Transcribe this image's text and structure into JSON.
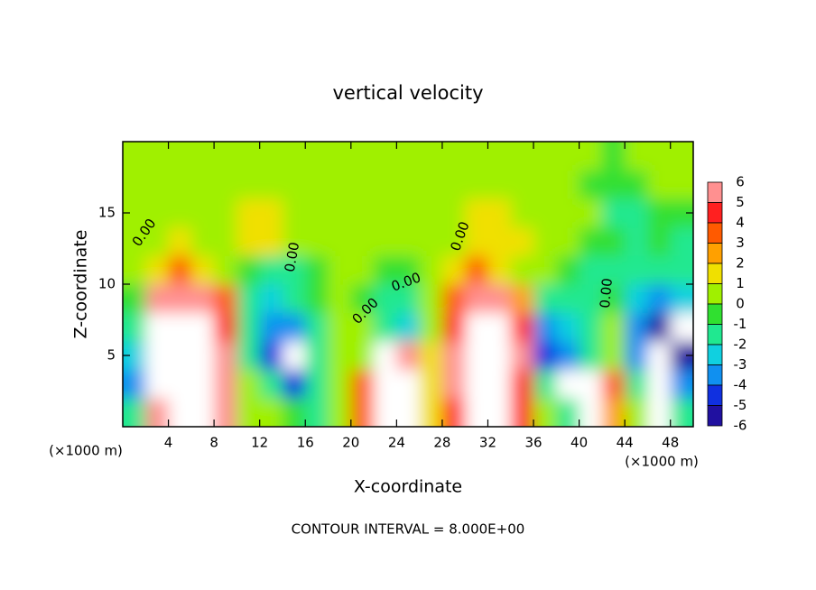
{
  "chart_data": {
    "type": "heatmap",
    "title": "vertical velocity",
    "x_label": "X-coordinate",
    "y_label": "Z-coordinate",
    "x_unit": "(×1000 m)",
    "y_unit": "(×1000 m)",
    "footer": "CONTOUR INTERVAL = 8.000E+00",
    "xlim": [
      0,
      50
    ],
    "ylim": [
      0,
      20
    ],
    "xticks": [
      4,
      8,
      12,
      16,
      20,
      24,
      28,
      32,
      36,
      40,
      44,
      48
    ],
    "yticks": [
      5,
      10,
      15
    ],
    "x": [
      1,
      3,
      5,
      7,
      9,
      11,
      13,
      15,
      17,
      19,
      21,
      23,
      25,
      27,
      29,
      31,
      33,
      35,
      37,
      39,
      41,
      43,
      45,
      47,
      49
    ],
    "y": [
      1,
      3,
      5,
      7,
      9,
      11,
      13,
      15,
      17,
      19
    ],
    "values": [
      [
        -2,
        5,
        8,
        8,
        5,
        0,
        0,
        -1,
        -2,
        0,
        3,
        8,
        7,
        1,
        4,
        8,
        7,
        4,
        0,
        -2,
        7,
        2,
        0,
        7,
        -2
      ],
      [
        -4,
        8,
        9,
        9,
        5,
        0,
        -2,
        -5,
        -2,
        0,
        3,
        8,
        8,
        1,
        5,
        8,
        8,
        4,
        -2,
        7,
        7,
        3,
        -2,
        8,
        -4
      ],
      [
        -3,
        8,
        9,
        9,
        5,
        -2,
        -5,
        -8,
        -2,
        0,
        0,
        8,
        5,
        1,
        5,
        8,
        9,
        5,
        -5,
        -4,
        -2,
        0,
        -4,
        8,
        -6
      ],
      [
        -2,
        8,
        8,
        8,
        4,
        -2,
        -4,
        -4,
        -2,
        0,
        0,
        -2,
        -3,
        0,
        4,
        8,
        8,
        4,
        -4,
        -3,
        -2,
        0,
        -4,
        -6,
        8
      ],
      [
        -1,
        5,
        6,
        5,
        3,
        -2,
        -3,
        -2,
        -1,
        0,
        -1,
        -2,
        -2,
        0,
        3,
        5,
        5,
        2,
        -2,
        -2,
        -2,
        -1,
        -3,
        -4,
        -3
      ],
      [
        0,
        1,
        3,
        1,
        0,
        -1,
        -2,
        -2,
        -1,
        0,
        0,
        -1,
        -1,
        0,
        1,
        3,
        1,
        0,
        0,
        -1,
        -2,
        -2,
        -2,
        -2,
        -2
      ],
      [
        0,
        0,
        1,
        0,
        0,
        1,
        1,
        0,
        0,
        0,
        0,
        0,
        0,
        0,
        0,
        1,
        1,
        1,
        0,
        0,
        -1,
        -1,
        -2,
        -1,
        -2
      ],
      [
        0,
        0,
        0,
        0,
        0,
        1,
        1,
        0,
        0,
        0,
        0,
        0,
        0,
        0,
        0,
        1,
        1,
        0,
        0,
        0,
        0,
        -2,
        -2,
        -1,
        -1
      ],
      [
        0,
        0,
        0,
        0,
        0,
        0,
        0,
        0,
        0,
        0,
        0,
        0,
        0,
        0,
        0,
        0,
        0,
        0,
        0,
        0,
        -1,
        -1,
        -1,
        0,
        0
      ],
      [
        0,
        0,
        0,
        0,
        0,
        0,
        0,
        0,
        0,
        0,
        0,
        0,
        0,
        0,
        0,
        0,
        0,
        0,
        0,
        0,
        0,
        -1,
        0,
        0,
        0
      ]
    ],
    "levels": [
      6,
      5,
      4,
      3,
      2,
      1,
      0,
      -1,
      -2,
      -3,
      -4,
      -5,
      -6
    ],
    "colors": [
      "#ff9090",
      "#ff2020",
      "#ff5a00",
      "#ffa000",
      "#f0e000",
      "#a0f000",
      "#30e030",
      "#20e890",
      "#10d0e0",
      "#1090f0",
      "#1030e0",
      "#2010a0"
    ],
    "out_of_range_color": "#ffffff",
    "contour_labels": [
      "0.00",
      "0.00",
      "0.00",
      "0.00",
      "0.00",
      "0.00"
    ]
  }
}
